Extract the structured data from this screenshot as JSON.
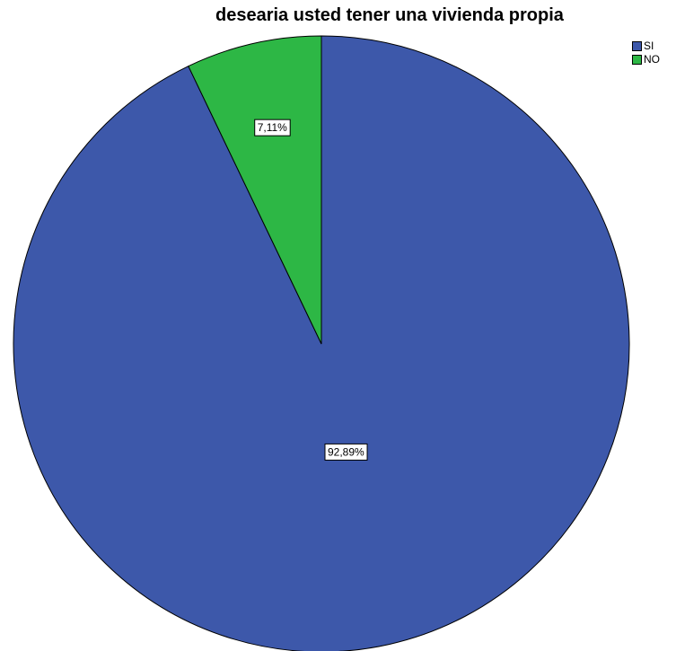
{
  "chart_data": {
    "type": "pie",
    "title": "desearia usted tener una vivienda propia",
    "legend_position": "top-right",
    "start_angle_deg": 0,
    "direction": "clockwise",
    "slices": [
      {
        "label": "SI",
        "value": 92.89,
        "display": "92,89%",
        "color": "#3d58aa"
      },
      {
        "label": "NO",
        "value": 7.11,
        "display": "7,11%",
        "color": "#2db745"
      }
    ]
  }
}
